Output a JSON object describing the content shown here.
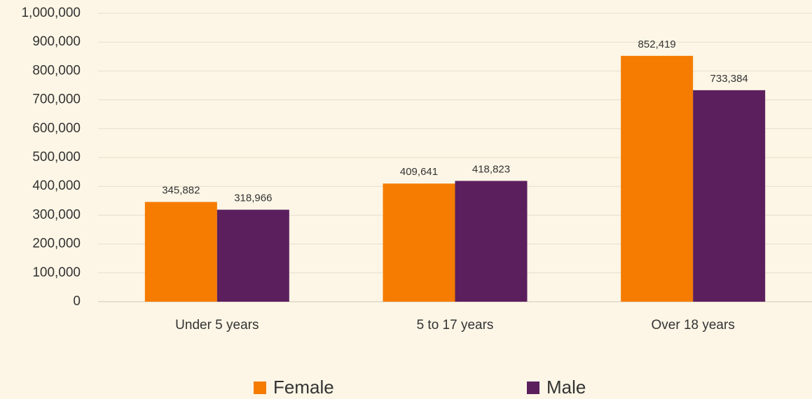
{
  "chart_data": {
    "type": "bar",
    "categories": [
      "Under 5 years",
      "5 to 17 years",
      "Over 18 years"
    ],
    "series": [
      {
        "name": "Female",
        "color": "#f57c00",
        "values": [
          345882,
          409641,
          852419
        ],
        "value_labels": [
          "345,882",
          "409,641",
          "852,419"
        ]
      },
      {
        "name": "Male",
        "color": "#5b1f5e",
        "values": [
          318966,
          418823,
          733384
        ],
        "value_labels": [
          "318,966",
          "418,823",
          "733,384"
        ]
      }
    ],
    "ylim": [
      0,
      1000000
    ],
    "yticks": [
      0,
      {
        "value": 100000,
        "label": "100,000"
      },
      {
        "value": 200000,
        "label": "200,000"
      },
      {
        "value": 300000,
        "label": "300,000"
      },
      {
        "value": 400000,
        "label": "400,000"
      },
      {
        "value": 500000,
        "label": "500,000"
      },
      {
        "value": 600000,
        "label": "600,000"
      },
      {
        "value": 700000,
        "label": "700,000"
      },
      {
        "value": 800000,
        "label": "800,000"
      },
      {
        "value": 900000,
        "label": "900,000"
      },
      {
        "value": 1000000,
        "label": "1,000,000"
      }
    ],
    "grid": true,
    "legend": "bottom"
  }
}
